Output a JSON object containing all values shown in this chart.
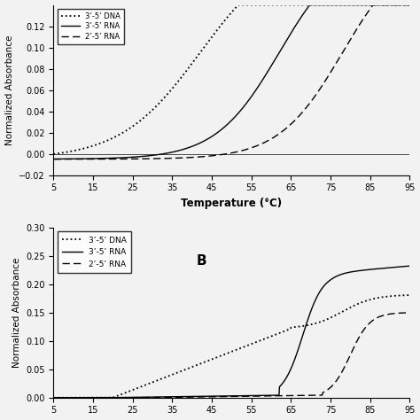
{
  "fig_width": 4.74,
  "fig_height": 4.74,
  "dpi": 100,
  "background_color": "#f2f2f2",
  "panel_A": {
    "ylabel": "Normalized Absorbance",
    "xlabel": "Temperature (°C)",
    "xlim": [
      5,
      95
    ],
    "ylim": [
      -0.02,
      0.14
    ],
    "yticks": [
      -0.02,
      0,
      0.02,
      0.04,
      0.06,
      0.08,
      0.1,
      0.12
    ],
    "xticks": [
      5,
      15,
      25,
      35,
      45,
      55,
      65,
      75,
      85,
      95
    ]
  },
  "panel_B": {
    "ylabel": "Normalized Absorbance",
    "xlim": [
      5,
      95
    ],
    "ylim": [
      0,
      0.3
    ],
    "yticks": [
      0,
      0.05,
      0.1,
      0.15,
      0.2,
      0.25,
      0.3
    ],
    "xticks": [
      5,
      15,
      25,
      35,
      45,
      55,
      65,
      75,
      85,
      95
    ],
    "label_B": "B"
  },
  "line_labels": [
    "3’-5’ DNA",
    "3’-5’ RNA",
    "2’-5’ RNA"
  ]
}
